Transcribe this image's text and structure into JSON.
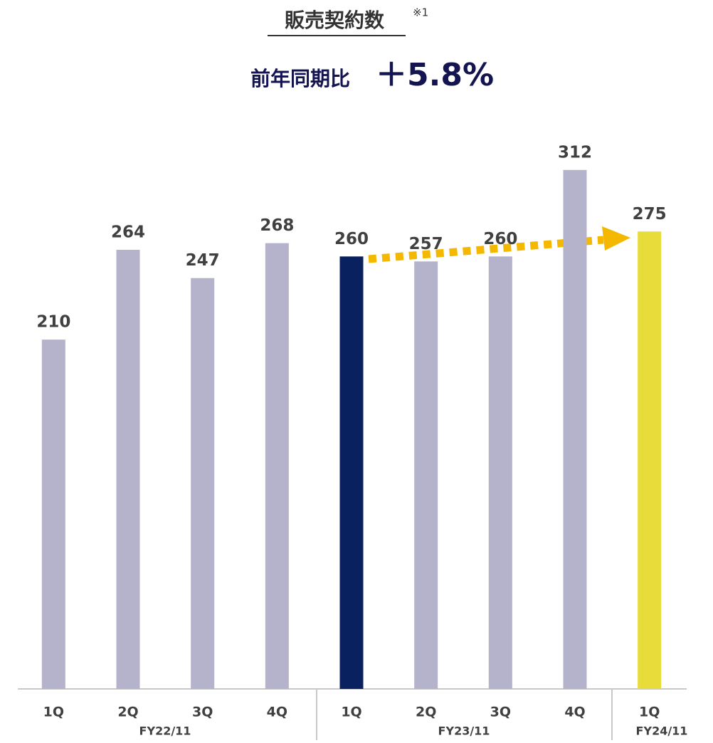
{
  "chart_data": {
    "type": "bar",
    "title": "販売契約数",
    "title_note": "※1",
    "subtitle": "前年同期比",
    "change": "＋5.8%",
    "categories": [
      "1Q",
      "2Q",
      "3Q",
      "4Q",
      "1Q",
      "2Q",
      "3Q",
      "4Q",
      "1Q"
    ],
    "groups": [
      "FY22/11",
      "FY23/11",
      "FY24/11"
    ],
    "values": [
      210,
      264,
      247,
      268,
      260,
      257,
      260,
      312,
      275
    ],
    "colors": [
      "#b5b2cc",
      "#b5b2cc",
      "#b5b2cc",
      "#b5b2cc",
      "#0a2160",
      "#b5b2cc",
      "#b5b2cc",
      "#b5b2cc",
      "#e8dc3a"
    ],
    "ylim": [
      0,
      350
    ]
  }
}
